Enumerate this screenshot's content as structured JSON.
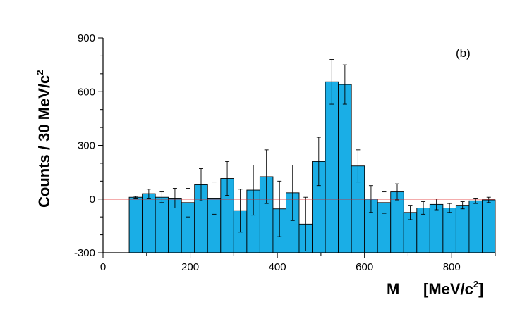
{
  "chart_data": {
    "type": "bar",
    "panel_label": "(b)",
    "ylabel": "Counts / 30 MeV/c",
    "ylabel_exponent": "2",
    "xlabel_symbol": "M",
    "xlabel_unit": "[MeV/c",
    "xlabel_exponent": "2",
    "xlabel_close": "]",
    "xlim": [
      0,
      900
    ],
    "ylim": [
      -300,
      900
    ],
    "xticks": [
      0,
      200,
      400,
      600,
      800
    ],
    "yticks": [
      -300,
      0,
      300,
      600,
      900
    ],
    "xtick_labels": [
      "0",
      "200",
      "400",
      "600",
      "800"
    ],
    "ytick_labels": [
      "-300",
      "0",
      "300",
      "600",
      "900"
    ],
    "bin_width": 30,
    "bar_color": "#1aaee6",
    "zero_line_color": "#e02020",
    "series": [
      {
        "bin_start": [
          60,
          90,
          120,
          150,
          180,
          210,
          240,
          270,
          300,
          330,
          360,
          390,
          420,
          450,
          480,
          510,
          540,
          570,
          600,
          630,
          660,
          690,
          720,
          750,
          780,
          810,
          840,
          870
        ],
        "values": [
          10,
          30,
          10,
          5,
          -20,
          80,
          5,
          115,
          -65,
          50,
          125,
          -55,
          35,
          -140,
          210,
          655,
          640,
          185,
          0,
          -20,
          40,
          -75,
          -50,
          -30,
          -50,
          -35,
          -10,
          -5
        ],
        "errors": [
          5,
          25,
          30,
          55,
          80,
          90,
          90,
          95,
          120,
          140,
          150,
          155,
          155,
          150,
          135,
          125,
          110,
          90,
          75,
          60,
          45,
          40,
          35,
          30,
          25,
          20,
          15,
          15
        ]
      }
    ]
  }
}
